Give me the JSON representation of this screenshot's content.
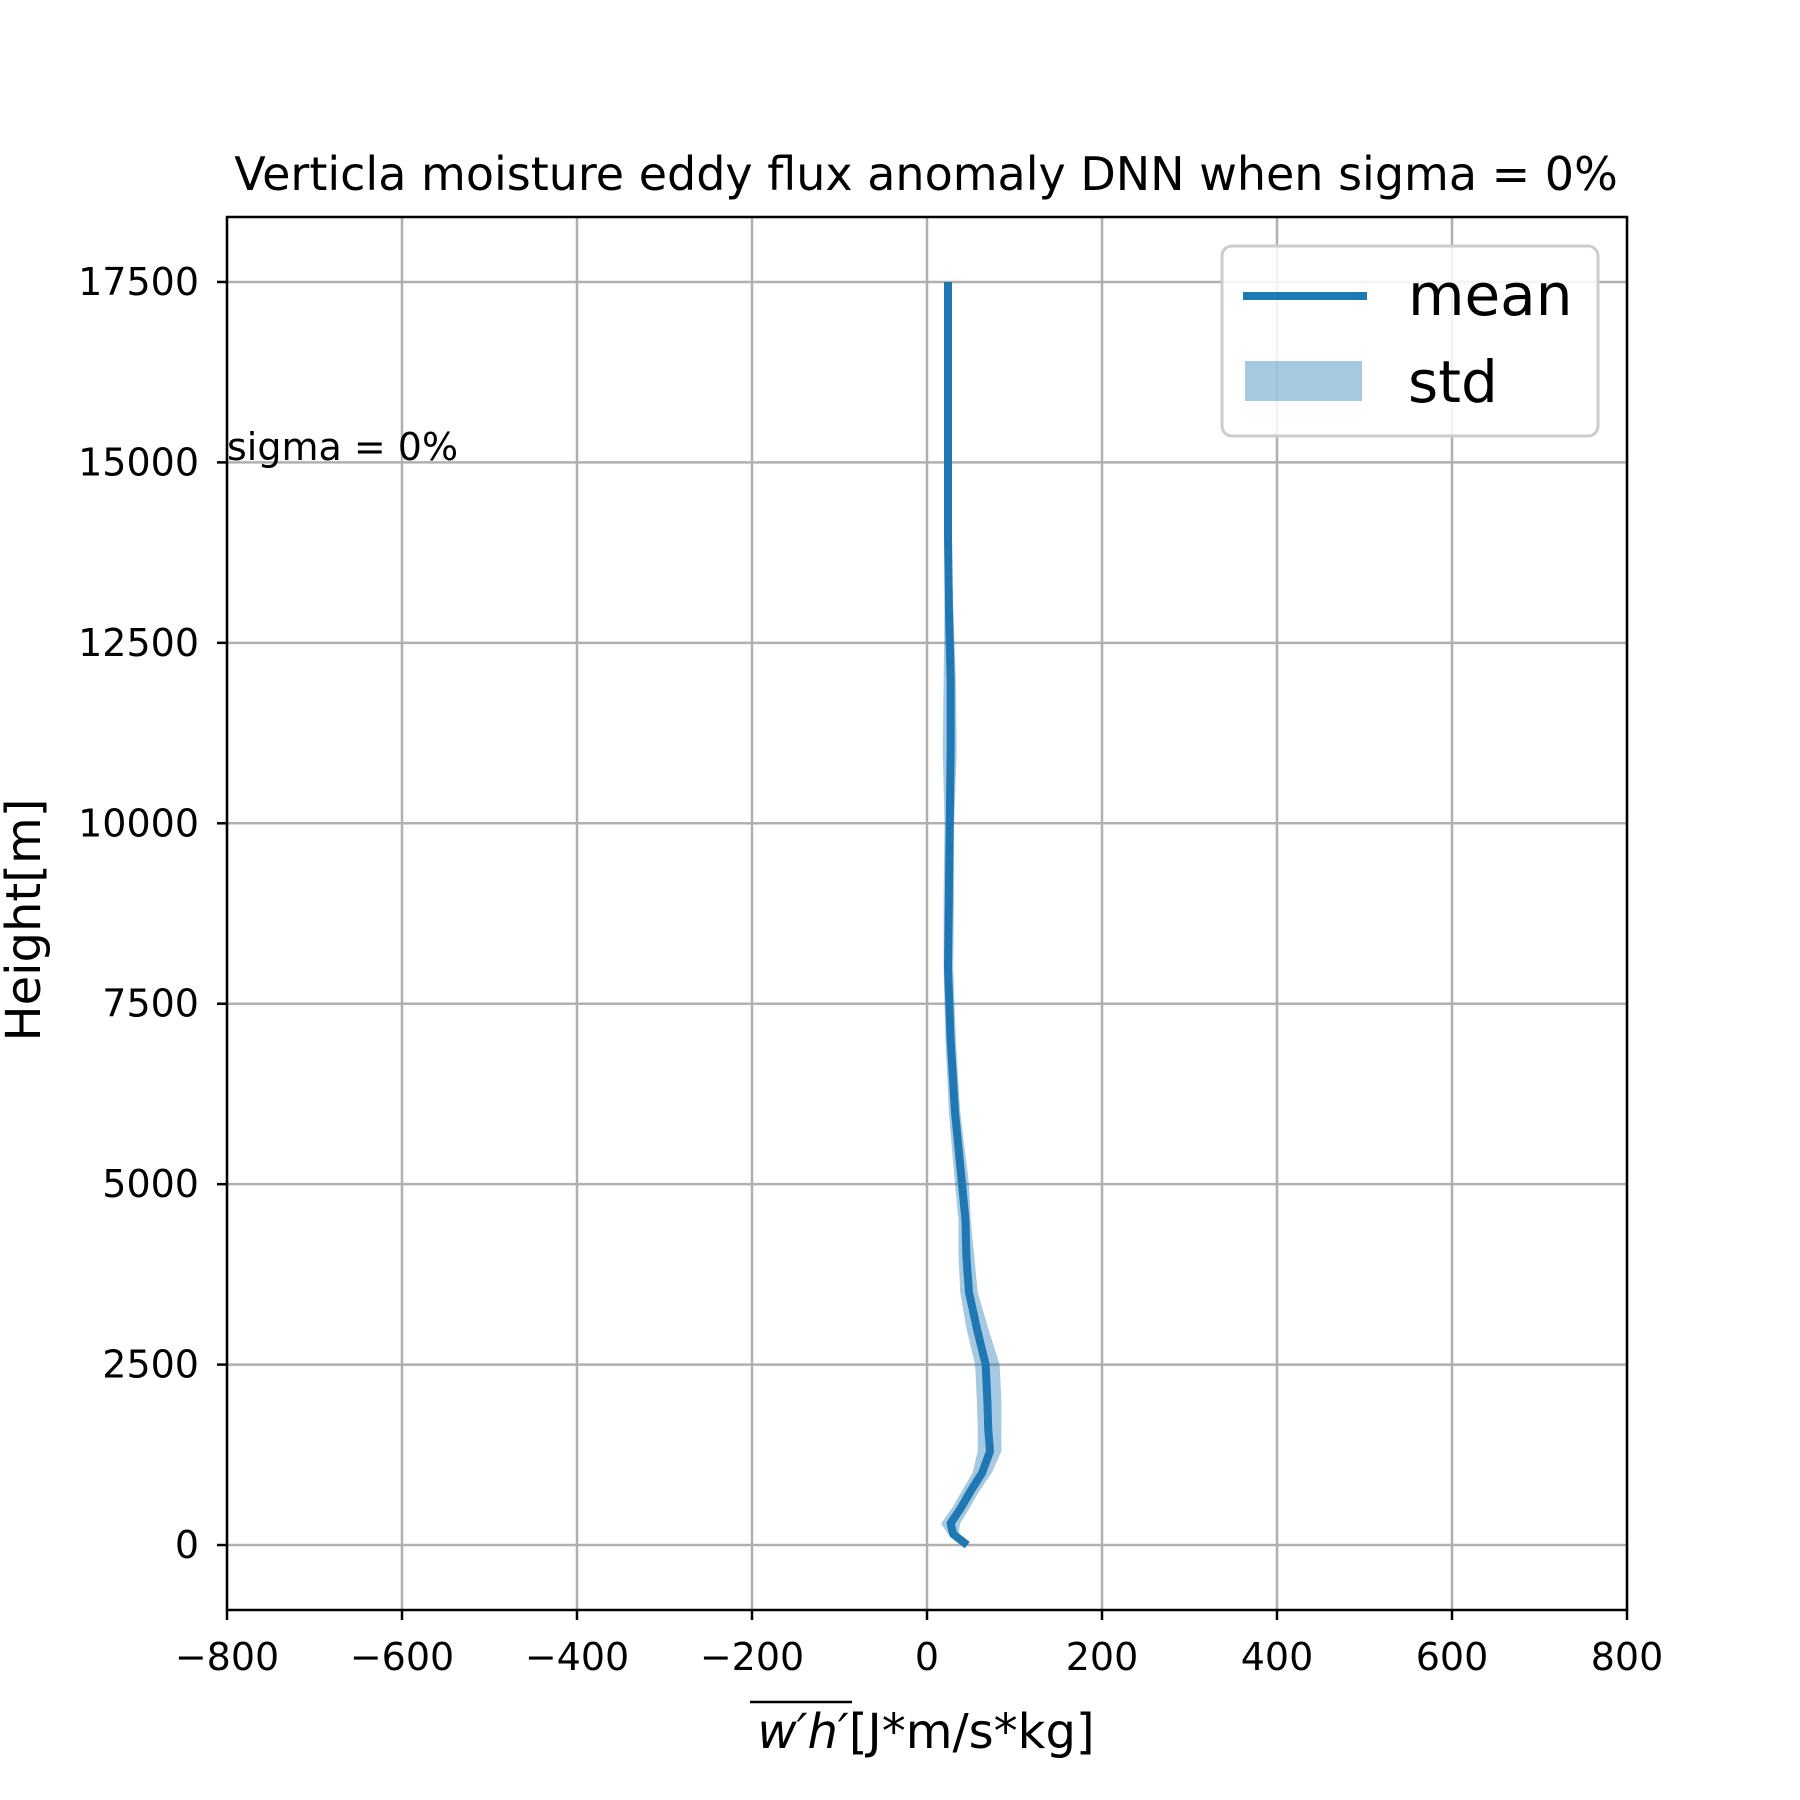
{
  "chart_data": {
    "type": "line",
    "title": "Verticla moisture eddy flux anomaly DNN when sigma = 0%",
    "xlabel_math": "w′h′",
    "xlabel_unit": "[J*m/s*kg]",
    "ylabel": "Height[m]",
    "xlim": [
      -800,
      800
    ],
    "ylim": [
      -900,
      18400
    ],
    "xticks": [
      -800,
      -600,
      -400,
      -200,
      0,
      200,
      400,
      600,
      800
    ],
    "xtick_labels": [
      "−800",
      "−600",
      "−400",
      "−200",
      "0",
      "200",
      "400",
      "600",
      "800"
    ],
    "yticks": [
      0,
      2500,
      5000,
      7500,
      10000,
      12500,
      15000,
      17500
    ],
    "ytick_labels": [
      "0",
      "2500",
      "5000",
      "7500",
      "10000",
      "12500",
      "15000",
      "17500"
    ],
    "grid": true,
    "legend_position": "top-right",
    "annotation": "sigma = 0%",
    "colors": {
      "mean": "#1f77b4",
      "std": "#a6c8e2",
      "grid": "#b0b0b0"
    },
    "series": [
      {
        "name": "mean",
        "y": [
          0,
          150,
          300,
          500,
          750,
          1000,
          1300,
          1600,
          2000,
          2500,
          3000,
          3500,
          4000,
          4500,
          5000,
          6000,
          7000,
          8000,
          9000,
          10000,
          11000,
          12000,
          13000,
          14000,
          15000,
          16000,
          17500
        ],
        "x": [
          46,
          30,
          27,
          38,
          50,
          63,
          72,
          70,
          69,
          67,
          57,
          48,
          45,
          44,
          40,
          32,
          27,
          24,
          25,
          26,
          27,
          27,
          25,
          24,
          24,
          24,
          24
        ],
        "low": [
          44,
          24,
          16,
          28,
          40,
          52,
          58,
          58,
          57,
          55,
          45,
          38,
          36,
          36,
          32,
          25,
          21,
          19,
          19,
          20,
          18,
          19,
          20,
          21,
          22,
          23,
          23
        ],
        "high": [
          48,
          36,
          38,
          48,
          60,
          74,
          85,
          85,
          85,
          83,
          70,
          58,
          54,
          50,
          48,
          38,
          33,
          30,
          31,
          31,
          34,
          33,
          30,
          27,
          26,
          25,
          25
        ]
      }
    ],
    "legend": [
      {
        "label": "mean",
        "kind": "line"
      },
      {
        "label": "std",
        "kind": "band"
      }
    ]
  }
}
